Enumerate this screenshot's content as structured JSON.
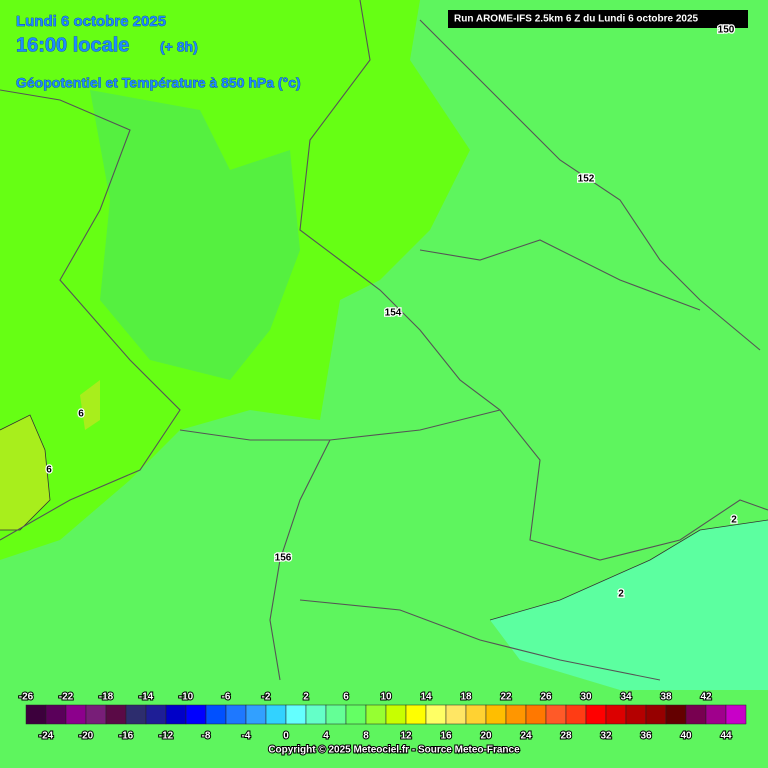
{
  "header": {
    "date": "Lundi 6 octobre 2025",
    "time": "16:00 locale",
    "lead": "(+ 8h)",
    "subtitle": "Géopotentiel et Température à 850 hPa (°c)",
    "run": "Run AROME-IFS 2.5km 6 Z du Lundi 6 octobre 2025"
  },
  "map": {
    "contour_labels": [
      "150",
      "152",
      "154",
      "156",
      "6",
      "6",
      "2",
      "2"
    ]
  },
  "colorbar": {
    "values": [
      -26,
      -24,
      -22,
      -20,
      -18,
      -16,
      -14,
      -12,
      -10,
      -8,
      -6,
      -4,
      -2,
      0,
      2,
      4,
      6,
      8,
      10,
      12,
      14,
      16,
      18,
      20,
      22,
      24,
      26,
      28,
      30,
      32,
      34,
      36,
      38,
      40,
      42,
      44
    ],
    "colors": [
      "#3c003c",
      "#5a005a",
      "#8c008c",
      "#781e78",
      "#5a0a46",
      "#2d2d6e",
      "#1e1e96",
      "#0000c8",
      "#0000ff",
      "#0050ff",
      "#1e78ff",
      "#32a0ff",
      "#32d2ff",
      "#64ffff",
      "#64ffc8",
      "#64ff96",
      "#64ff64",
      "#96ff32",
      "#c8ff00",
      "#ffff00",
      "#ffff64",
      "#ffe664",
      "#ffd232",
      "#ffbe00",
      "#ff9600",
      "#ff7800",
      "#ff5a28",
      "#ff3c14",
      "#ff0000",
      "#dc0000",
      "#b40000",
      "#960000",
      "#640000",
      "#780050",
      "#a0008c",
      "#c800c8"
    ]
  },
  "footer": {
    "copyright": "Copyright © 2025 Meteociel.fr - Source Meteo-France"
  }
}
